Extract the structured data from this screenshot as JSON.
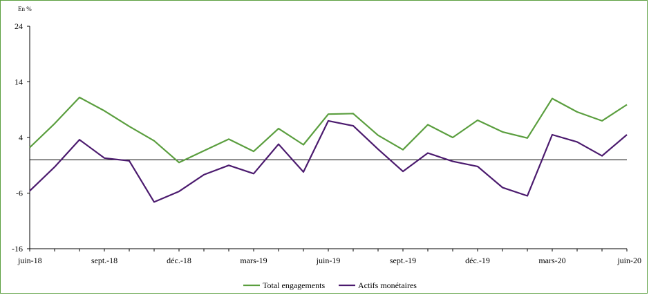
{
  "chart_data": {
    "type": "line",
    "unit_label": "En %",
    "x": [
      "juin-18",
      "juil.-18",
      "août-18",
      "sept.-18",
      "oct.-18",
      "nov.-18",
      "déc.-18",
      "janv.-19",
      "févr.-19",
      "mars-19",
      "avr.-19",
      "mai-19",
      "juin-19",
      "juil.-19",
      "août-19",
      "sept.-19",
      "oct.-19",
      "nov.-19",
      "déc.-19",
      "janv.-20",
      "févr.-20",
      "mars-20",
      "avr.-20",
      "mai-20",
      "juin-20"
    ],
    "x_tick_labels": [
      "juin-18",
      "sept.-18",
      "déc.-18",
      "mars-19",
      "juin-19",
      "sept.-19",
      "déc.-19",
      "mars-20",
      "juin-20"
    ],
    "y_ticks": [
      "-16",
      "-6",
      "4",
      "14",
      "24"
    ],
    "ylim": [
      -16,
      24
    ],
    "series": [
      {
        "name": "Total engagements",
        "color": "#5a9e3e",
        "values": [
          2.2,
          6.5,
          11.2,
          8.8,
          6.0,
          3.4,
          -0.5,
          1.6,
          3.7,
          1.5,
          5.6,
          2.7,
          8.2,
          8.3,
          4.4,
          1.8,
          6.3,
          4.0,
          7.1,
          5.0,
          3.9,
          11.0,
          8.6,
          7.0,
          9.9
        ]
      },
      {
        "name": "Actifs monétaires",
        "color": "#4b1a6e",
        "values": [
          -5.6,
          -1.3,
          3.6,
          0.3,
          -0.2,
          -7.6,
          -5.7,
          -2.7,
          -1.0,
          -2.5,
          2.8,
          -2.2,
          7.0,
          6.1,
          1.9,
          -2.1,
          1.2,
          -0.3,
          -1.2,
          -5.0,
          -6.5,
          4.5,
          3.2,
          0.7,
          4.5
        ]
      }
    ],
    "legend_position": "bottom-center",
    "grid": false
  }
}
